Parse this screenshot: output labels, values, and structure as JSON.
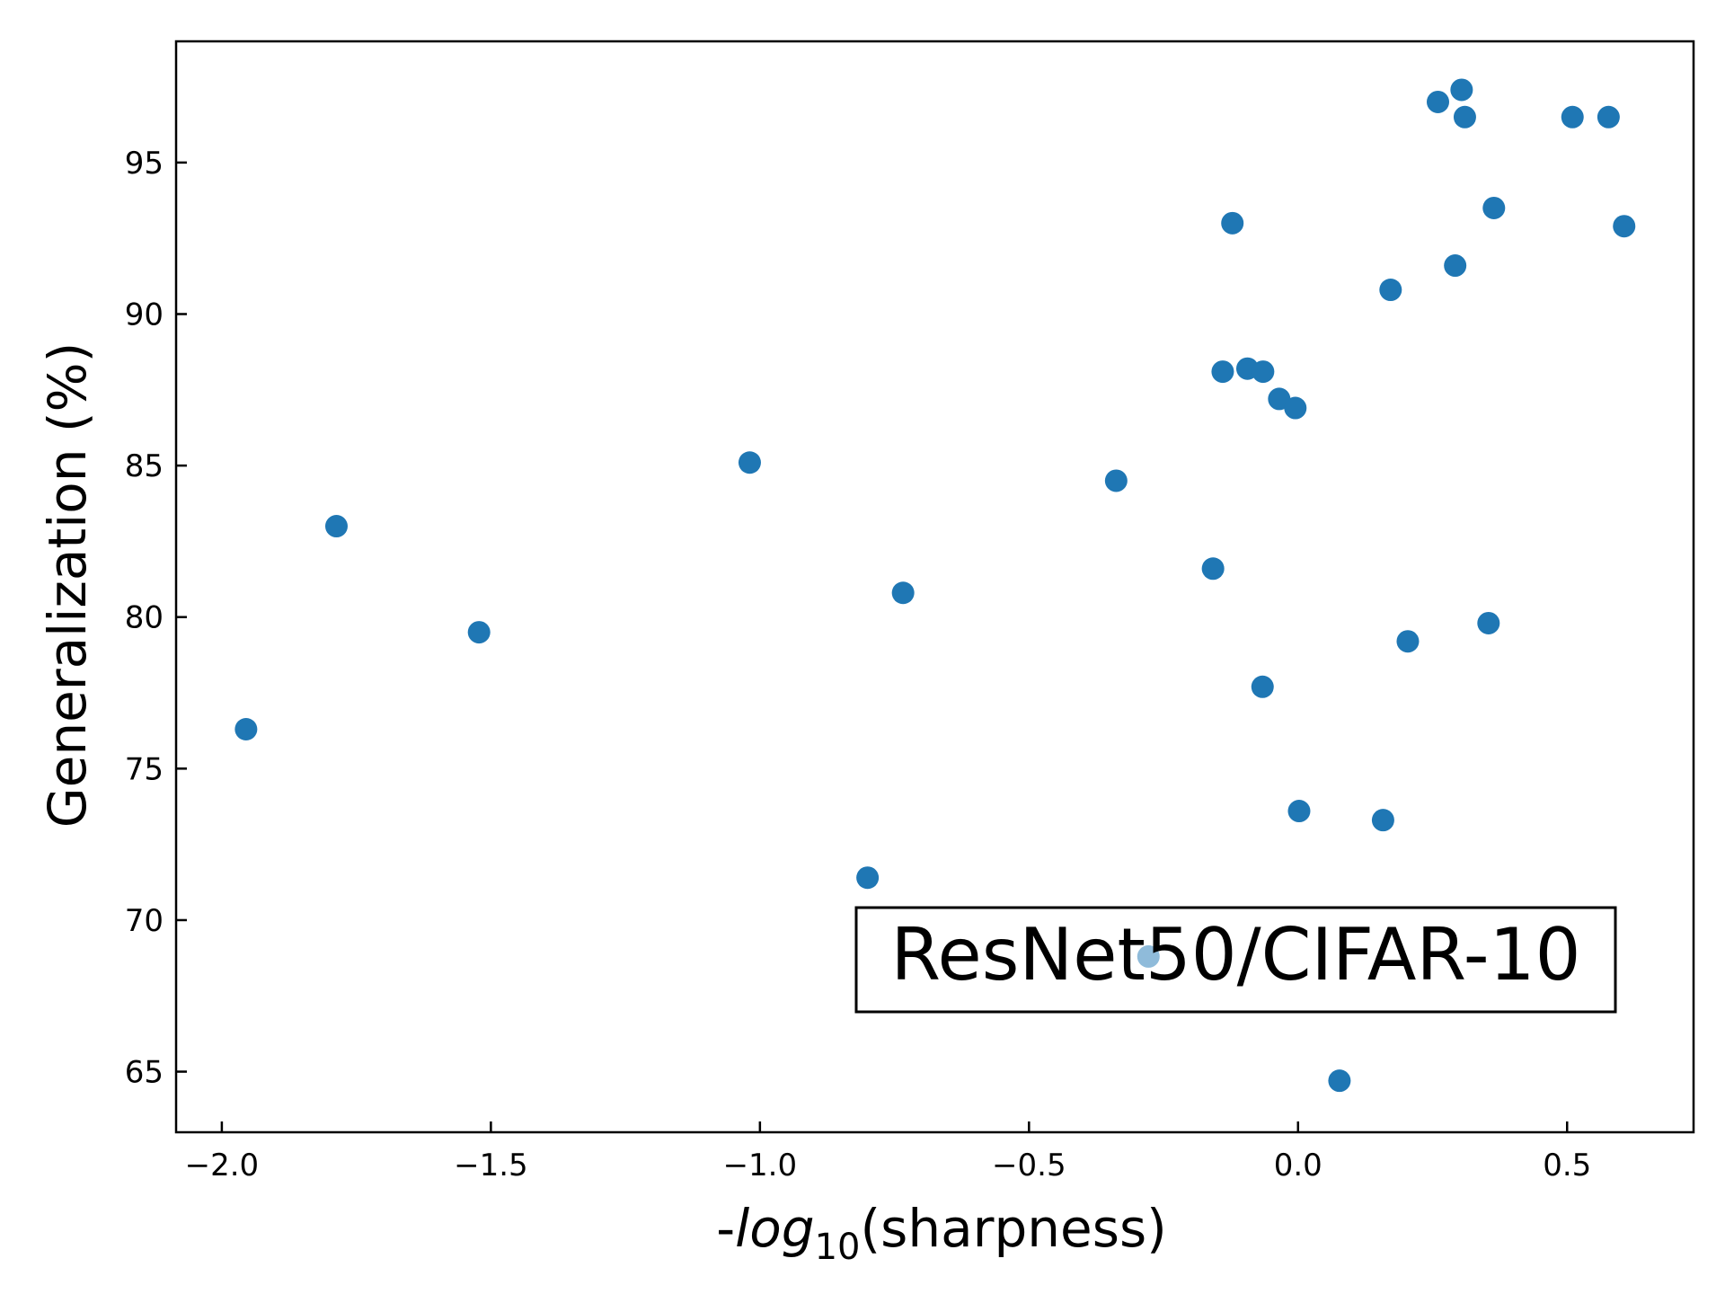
{
  "chart_data": {
    "type": "scatter",
    "title": "",
    "xlabel": {
      "prefix": "-",
      "func": "log",
      "subscript": "10",
      "arg": "(sharpness)"
    },
    "ylabel": "Generalization (%)",
    "xlim": [
      -2.085,
      0.735
    ],
    "ylim": [
      63.0,
      99.0
    ],
    "xticks": [
      -2.0,
      -1.5,
      -1.0,
      -0.5,
      0.0,
      0.5
    ],
    "xtick_labels": [
      "−2.0",
      "−1.5",
      "−1.0",
      "−0.5",
      "0.0",
      "0.5"
    ],
    "yticks": [
      65,
      70,
      75,
      80,
      85,
      90,
      95
    ],
    "ytick_labels": [
      "65",
      "70",
      "75",
      "80",
      "85",
      "90",
      "95"
    ],
    "grid": false,
    "marker_color": "#1f77b4",
    "annotation": "ResNet50/CIFAR-10",
    "series": [
      {
        "points": [
          [
            -1.955,
            76.3
          ],
          [
            -1.787,
            83.0
          ],
          [
            -1.522,
            79.5
          ],
          [
            -1.019,
            85.1
          ],
          [
            -0.734,
            80.8
          ],
          [
            -0.8,
            71.4
          ],
          [
            -0.338,
            84.5
          ],
          [
            -0.278,
            68.8
          ],
          [
            -0.158,
            81.6
          ],
          [
            -0.14,
            88.1
          ],
          [
            -0.122,
            93.0
          ],
          [
            -0.094,
            88.2
          ],
          [
            -0.065,
            88.1
          ],
          [
            -0.066,
            77.7
          ],
          [
            -0.035,
            87.2
          ],
          [
            -0.005,
            86.9
          ],
          [
            0.002,
            73.6
          ],
          [
            0.077,
            64.7
          ],
          [
            0.158,
            73.3
          ],
          [
            0.172,
            90.8
          ],
          [
            0.204,
            79.2
          ],
          [
            0.26,
            97.0
          ],
          [
            0.292,
            91.6
          ],
          [
            0.304,
            97.4
          ],
          [
            0.31,
            96.5
          ],
          [
            0.354,
            79.8
          ],
          [
            0.364,
            93.5
          ],
          [
            0.51,
            96.5
          ],
          [
            0.577,
            96.5
          ],
          [
            0.606,
            92.9
          ]
        ]
      }
    ]
  }
}
